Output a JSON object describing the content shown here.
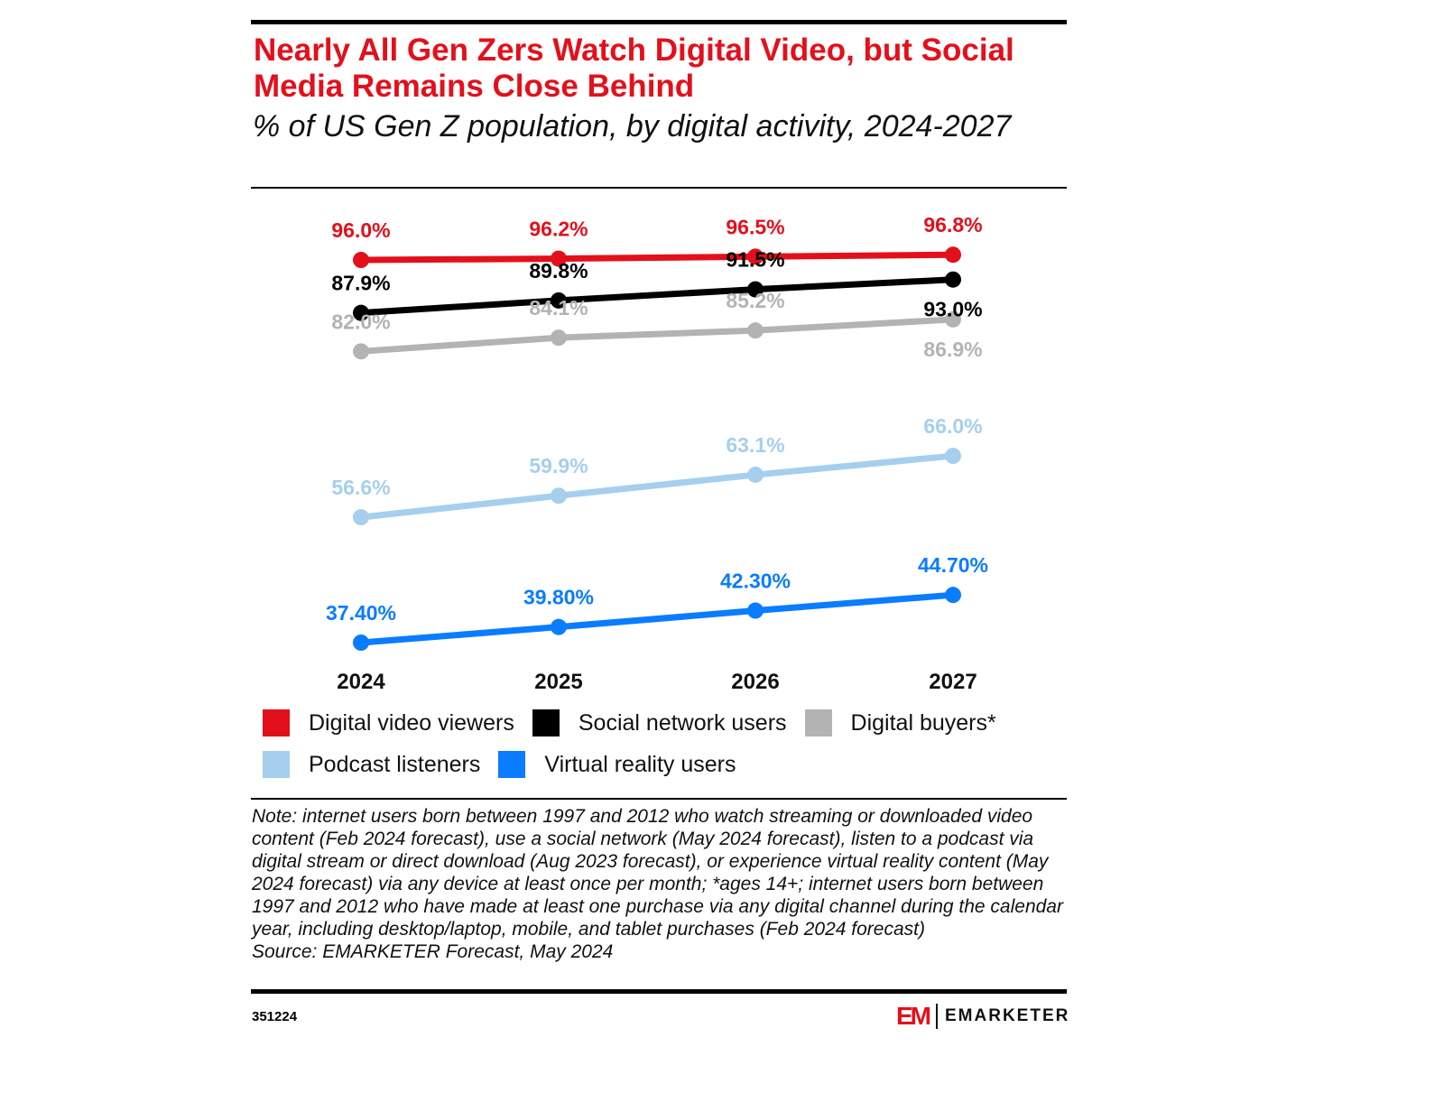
{
  "header": {
    "title": "Nearly All Gen Zers Watch Digital Video, but Social Media Remains Close Behind",
    "subtitle": "% of US Gen Z population, by digital activity, 2024-2027"
  },
  "chart_data": {
    "type": "line",
    "title": "Nearly All Gen Zers Watch Digital Video, but Social Media Remains Close Behind",
    "subtitle": "% of US Gen Z population, by digital activity, 2024-2027",
    "categories": [
      "2024",
      "2025",
      "2026",
      "2027"
    ],
    "grid": false,
    "legend_placement": "bottom",
    "series": [
      {
        "name": "Digital video viewers",
        "color": "#e3101b",
        "values": [
          96.0,
          96.2,
          96.5,
          96.8
        ],
        "labels": [
          "96.0%",
          "96.2%",
          "96.5%",
          "96.8%"
        ]
      },
      {
        "name": "Social network users",
        "color": "#000000",
        "values": [
          87.9,
          89.8,
          91.5,
          93.0
        ],
        "labels": [
          "87.9%",
          "89.8%",
          "91.5%",
          "93.0%"
        ]
      },
      {
        "name": "Digital buyers*",
        "color": "#b3b3b3",
        "values": [
          82.0,
          84.1,
          85.2,
          86.9
        ],
        "labels": [
          "82.0%",
          "84.1%",
          "85.2%",
          "86.9%"
        ]
      },
      {
        "name": "Podcast listeners",
        "color": "#a6cfee",
        "values": [
          56.6,
          59.9,
          63.1,
          66.0
        ],
        "labels": [
          "56.6%",
          "59.9%",
          "63.1%",
          "66.0%"
        ]
      },
      {
        "name": "Virtual reality users",
        "color": "#0a7cff",
        "values": [
          37.4,
          39.8,
          42.3,
          44.7
        ],
        "labels": [
          "37.40%",
          "39.80%",
          "42.30%",
          "44.70%"
        ]
      }
    ]
  },
  "footer": {
    "note": "Note: internet users born between 1997 and 2012 who watch streaming or downloaded video content (Feb 2024 forecast), use a social network (May 2024 forecast), listen to a podcast via digital stream or direct download (Aug 2023 forecast), or experience virtual reality content (May 2024 forecast) via any device at least once per month; *ages 14+; internet users born between 1997 and 2012 who have made at least one purchase via any digital channel during the calendar year, including desktop/laptop, mobile, and tablet purchases (Feb 2024 forecast)",
    "source": "Source: EMARKETER Forecast, May 2024",
    "chart_id": "351224",
    "logo_mark": "EM",
    "logo_text": "EMARKETER"
  }
}
